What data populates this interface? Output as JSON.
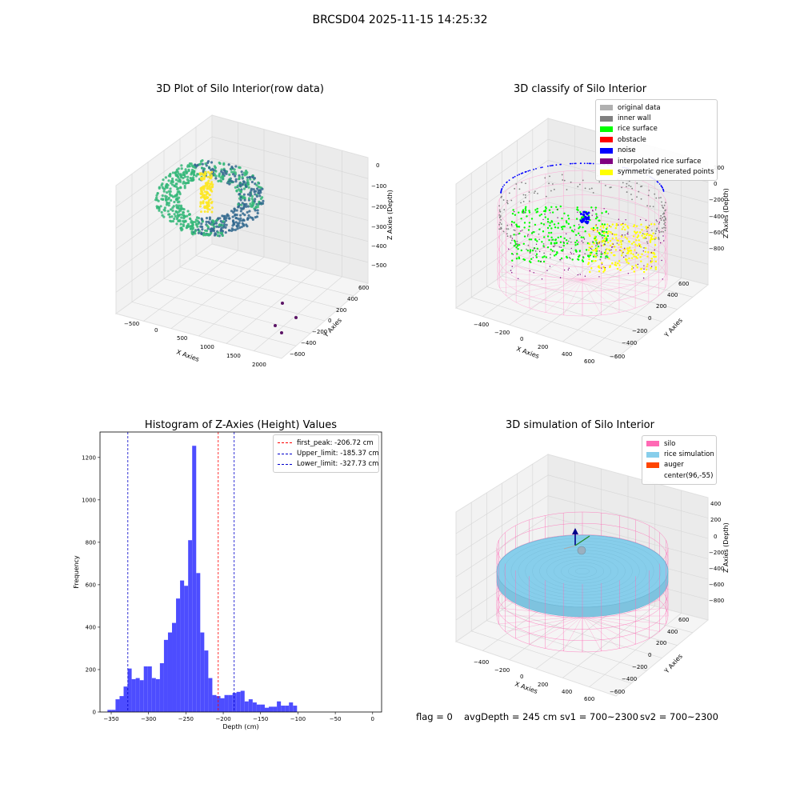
{
  "figure": {
    "title": "BRCSD04 2025-11-15 14:25:32"
  },
  "panels": {
    "raw": {
      "title": "3D Plot of Silo Interior(row data)",
      "xlabel": "X Axies",
      "ylabel": "Y Axies",
      "zlabel": "Z Axies (Depth)",
      "xticks": [
        "−500",
        "0",
        "500",
        "1000",
        "1500",
        "2000"
      ],
      "yticks": [
        "600",
        "400",
        "200",
        "0",
        "−200",
        "−400",
        "−600"
      ],
      "zticks": [
        "0",
        "−100",
        "−200",
        "−300",
        "−400",
        "−500"
      ],
      "colormap": [
        "#440154",
        "#31688e",
        "#35b779",
        "#fde725"
      ]
    },
    "classify": {
      "title": "3D classify of Silo Interior",
      "xlabel": "X Axies",
      "ylabel": "Y Axies",
      "zlabel": "Z Axies (Depth)",
      "xticks": [
        "−400",
        "−200",
        "0",
        "200",
        "400",
        "600"
      ],
      "yticks": [
        "600",
        "400",
        "200",
        "0",
        "−200",
        "−400",
        "−600"
      ],
      "zticks": [
        "200",
        "0",
        "−200",
        "−400",
        "−600",
        "−800"
      ],
      "legend": [
        {
          "label": "original data",
          "color": "#b0b0b0"
        },
        {
          "label": "inner wall",
          "color": "#808080"
        },
        {
          "label": "rice surface",
          "color": "#00ff00"
        },
        {
          "label": "obstacle",
          "color": "#ff0000"
        },
        {
          "label": "noise",
          "color": "#0000ff"
        },
        {
          "label": "interpolated rice surface",
          "color": "#800080"
        },
        {
          "label": "symmetric generated points",
          "color": "#ffff00"
        }
      ]
    },
    "histogram": {
      "title": "Histogram of Z-Axies (Height) Values",
      "xlabel": "Depth (cm)",
      "ylabel": "Frequency"
    },
    "simulation": {
      "title": "3D simulation of Silo Interior",
      "xlabel": "X Axies",
      "ylabel": "Y Axies",
      "zlabel": "Z Axies (Depth)",
      "xticks": [
        "−400",
        "−200",
        "0",
        "200",
        "400",
        "600"
      ],
      "yticks": [
        "600",
        "400",
        "200",
        "0",
        "−200",
        "−400",
        "−600"
      ],
      "zticks": [
        "400",
        "200",
        "0",
        "−200",
        "−400",
        "−600",
        "−800"
      ],
      "legend": [
        {
          "label": "silo",
          "color": "#ff69b4"
        },
        {
          "label": "rice simulation",
          "color": "#87ceeb"
        },
        {
          "label": "auger",
          "color": "#ff4500"
        },
        {
          "label": "center(96,-55)",
          "color": ""
        }
      ]
    }
  },
  "chart_data": {
    "type": "bar",
    "title": "Histogram of Z-Axies (Height) Values",
    "xlabel": "Depth (cm)",
    "ylabel": "Frequency",
    "xlim": [
      -365,
      12
    ],
    "ylim": [
      0,
      1320
    ],
    "xticks": [
      -350,
      -300,
      -250,
      -200,
      -150,
      -100,
      -50,
      0
    ],
    "xtick_labels": [
      "−350",
      "−300",
      "−250",
      "−200",
      "−150",
      "−100",
      "−50",
      "0"
    ],
    "yticks": [
      0,
      200,
      400,
      600,
      800,
      1000,
      1200
    ],
    "bar_color": "#4d4dff",
    "bin_edges_start": -355,
    "bin_width": 5.4,
    "counts": [
      10,
      10,
      60,
      75,
      120,
      205,
      155,
      160,
      150,
      215,
      215,
      160,
      155,
      230,
      340,
      375,
      420,
      535,
      620,
      595,
      810,
      1255,
      655,
      375,
      290,
      160,
      80,
      75,
      65,
      80,
      80,
      90,
      95,
      100,
      50,
      60,
      45,
      35,
      35,
      20,
      25,
      25,
      50,
      30,
      30,
      45,
      30
    ],
    "vlines": [
      {
        "label": "first_peak: -206.72 cm",
        "x": -206.72,
        "color": "#ff0000"
      },
      {
        "label": "Upper_limit: -185.37 cm",
        "x": -185.37,
        "color": "#0000cc"
      },
      {
        "label": "Lower_limit: -327.73 cm",
        "x": -327.73,
        "color": "#0000cc"
      }
    ],
    "legend_position": "top-right"
  },
  "stats": {
    "flag": "flag = 0",
    "avg_depth": "avgDepth = 245 cm",
    "sv1": "sv1 = 700~2300",
    "sv2": "sv2 = 700~2300"
  }
}
